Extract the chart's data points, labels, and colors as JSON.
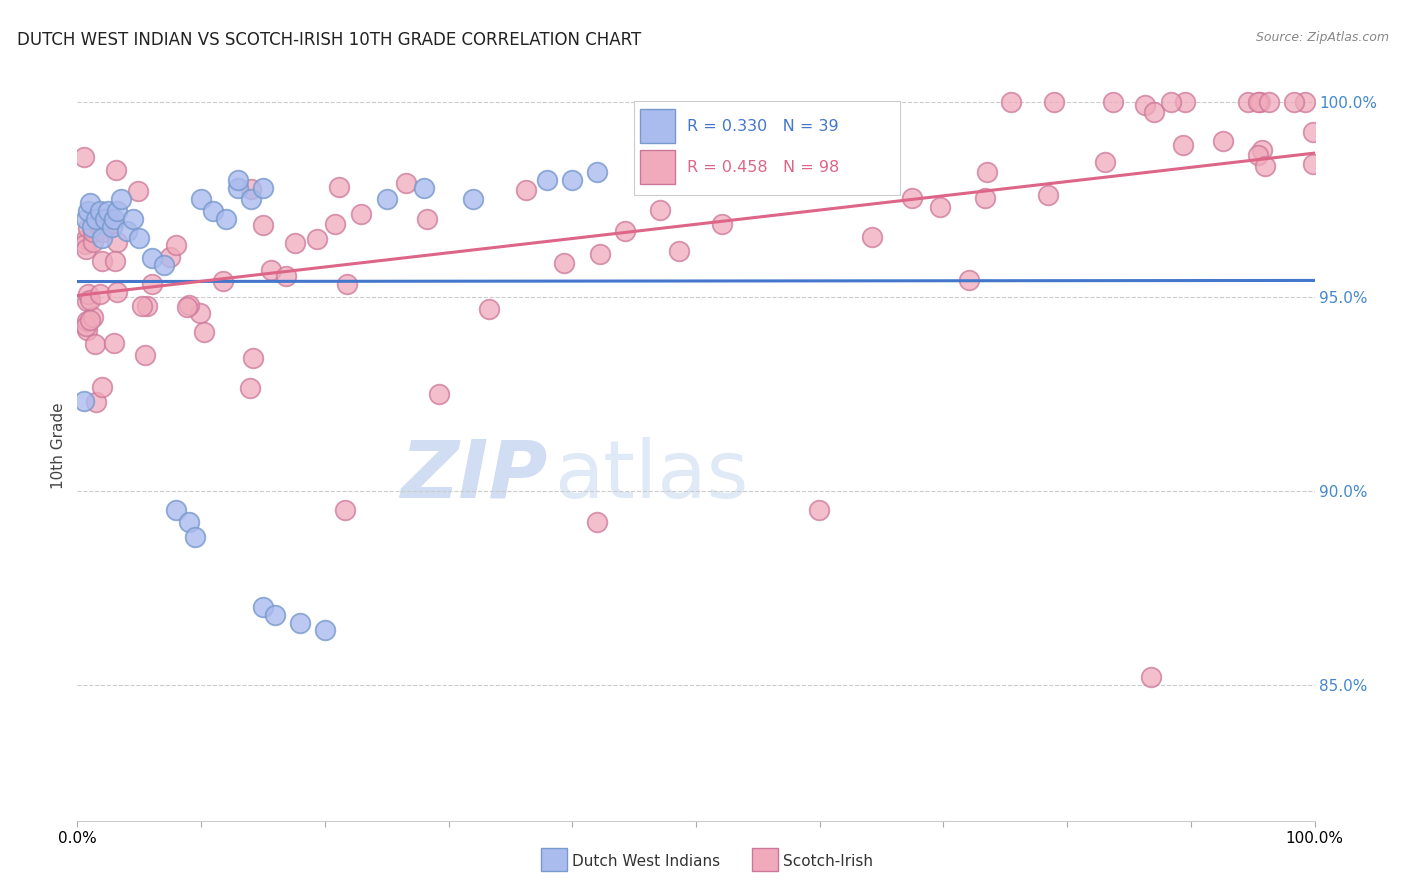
{
  "title": "DUTCH WEST INDIAN VS SCOTCH-IRISH 10TH GRADE CORRELATION CHART",
  "source": "Source: ZipAtlas.com",
  "ylabel": "10th Grade",
  "xlim": [
    0.0,
    1.0
  ],
  "ylim": [
    0.815,
    1.008
  ],
  "yticks": [
    0.85,
    0.9,
    0.95,
    1.0
  ],
  "ytick_labels": [
    "85.0%",
    "90.0%",
    "95.0%",
    "100.0%"
  ],
  "R_blue": 0.33,
  "N_blue": 39,
  "R_pink": 0.458,
  "N_pink": 98,
  "blue_line_color": "#4477cc",
  "pink_line_color": "#dd6688",
  "blue_face": "#aabbee",
  "blue_edge": "#7799cc",
  "pink_face": "#f0aabb",
  "pink_edge": "#cc7799",
  "grid_color": "#cccccc",
  "grid_style": "--",
  "watermark_zip_color": "#c8d8f0",
  "watermark_atlas_color": "#c8d8f0",
  "background_color": "#ffffff",
  "legend_box_color": "#ffffff",
  "legend_border_color": "#cccccc",
  "title_color": "#222222",
  "source_color": "#888888",
  "right_axis_color": "#4488cc"
}
